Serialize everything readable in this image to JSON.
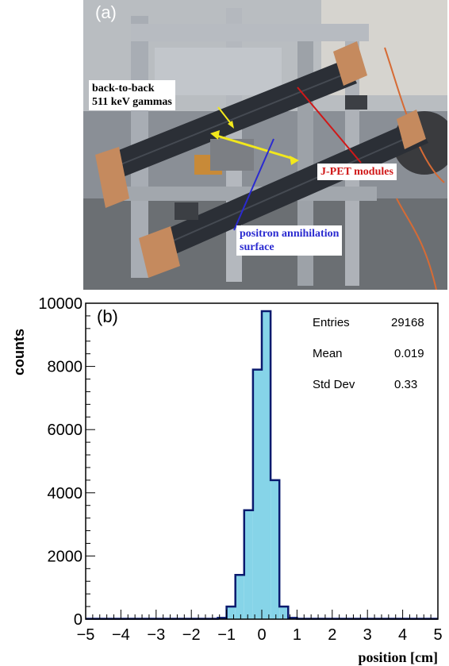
{
  "panel_a": {
    "label": "(a)",
    "annotations": {
      "gammas_line1": "back-to-back",
      "gammas_line2": "511 keV gammas",
      "modules": "J-PET modules",
      "surface_line1": "positron annihilation",
      "surface_line2": "surface"
    },
    "colors": {
      "gamma_arrow": "#f2e81c",
      "modules_arrow": "#d01818",
      "surface_arrow": "#2a2ad0",
      "module_body": "#2b2f36",
      "frame": "#a8adb4",
      "copper": "#c58a5e"
    }
  },
  "panel_b": {
    "label": "(b)",
    "stats": {
      "entries_label": "Entries",
      "entries_value": "29168",
      "mean_label": "Mean",
      "mean_value": "0.019",
      "std_label": "Std Dev",
      "std_value": "0.33"
    }
  },
  "chart_data": {
    "type": "bar",
    "xlabel": "position [cm]",
    "ylabel": "counts",
    "xlim": [
      -5,
      5
    ],
    "ylim": [
      0,
      10000
    ],
    "x_ticks": [
      "-5",
      "-4",
      "-3",
      "-2",
      "-1",
      "0",
      "1",
      "2",
      "3",
      "4",
      "5"
    ],
    "y_ticks": [
      "0",
      "2000",
      "4000",
      "6000",
      "8000",
      "10000"
    ],
    "bin_width": 0.25,
    "bin_low_edges": [
      -1.25,
      -1.0,
      -0.75,
      -0.5,
      -0.25,
      0.0,
      0.25,
      0.5,
      0.75
    ],
    "values": [
      40,
      400,
      1400,
      3450,
      7900,
      9750,
      4400,
      400,
      40
    ],
    "fill_color": "#86d4e8",
    "line_color": "#0a1a6e",
    "grid": false
  }
}
